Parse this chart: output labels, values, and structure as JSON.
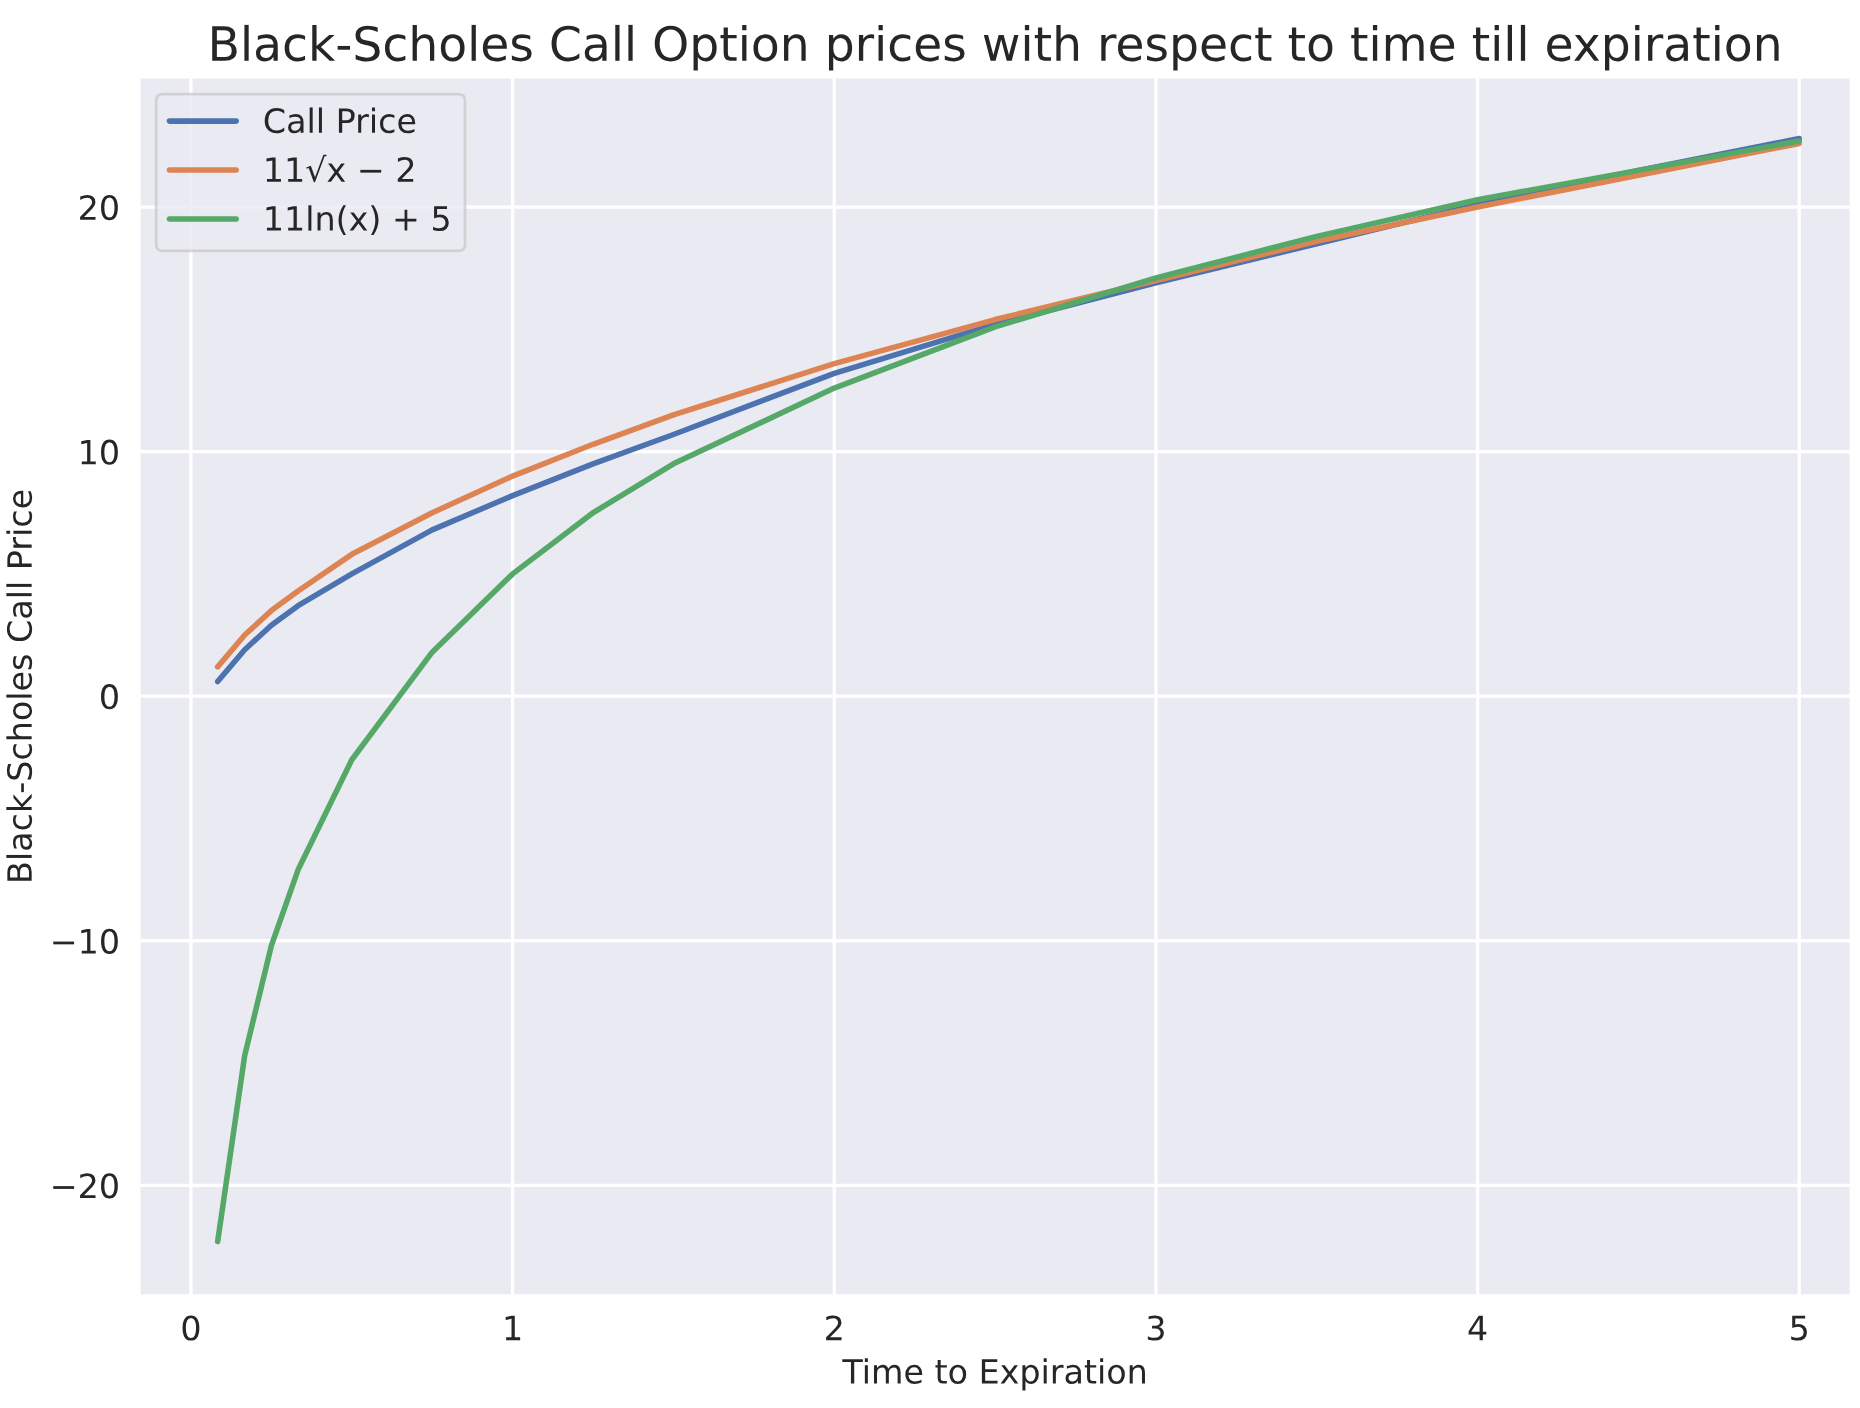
{
  "chart_data": {
    "type": "line",
    "title": "Black-Scholes Call Option prices with respect to time till expiration",
    "xlabel": "Time to Expiration",
    "ylabel": "Black-Scholes Call Price",
    "x": [
      0.083,
      0.167,
      0.25,
      0.333,
      0.5,
      0.75,
      1,
      1.25,
      1.5,
      2,
      2.5,
      3,
      3.5,
      4,
      4.5,
      5
    ],
    "series": [
      {
        "name": "Call Price",
        "color": "#4c72b0",
        "values": [
          0.6,
          1.9,
          2.9,
          3.7,
          5.0,
          6.8,
          8.2,
          9.5,
          10.7,
          13.2,
          15.2,
          16.9,
          18.5,
          20.1,
          21.5,
          22.8
        ]
      },
      {
        "name": "11√x − 2",
        "color": "#dd8452",
        "values": [
          1.2,
          2.5,
          3.5,
          4.3,
          5.8,
          7.5,
          9.0,
          10.3,
          11.5,
          13.6,
          15.4,
          17.0,
          18.6,
          20.0,
          21.3,
          22.6
        ]
      },
      {
        "name": "11ln(x) + 5",
        "color": "#55a868",
        "values": [
          -22.3,
          -14.7,
          -10.2,
          -7.1,
          -2.6,
          1.8,
          5.0,
          7.5,
          9.5,
          12.6,
          15.1,
          17.1,
          18.8,
          20.3,
          21.5,
          22.7
        ]
      }
    ],
    "xlim": [
      -0.16,
      5.16
    ],
    "ylim": [
      -24.5,
      25.3
    ],
    "xticks": [
      0,
      1,
      2,
      3,
      4,
      5
    ],
    "yticks": [
      -20,
      -10,
      0,
      10,
      20
    ],
    "grid": true,
    "legend": "top left",
    "marker": "none",
    "line_style": "solid"
  }
}
